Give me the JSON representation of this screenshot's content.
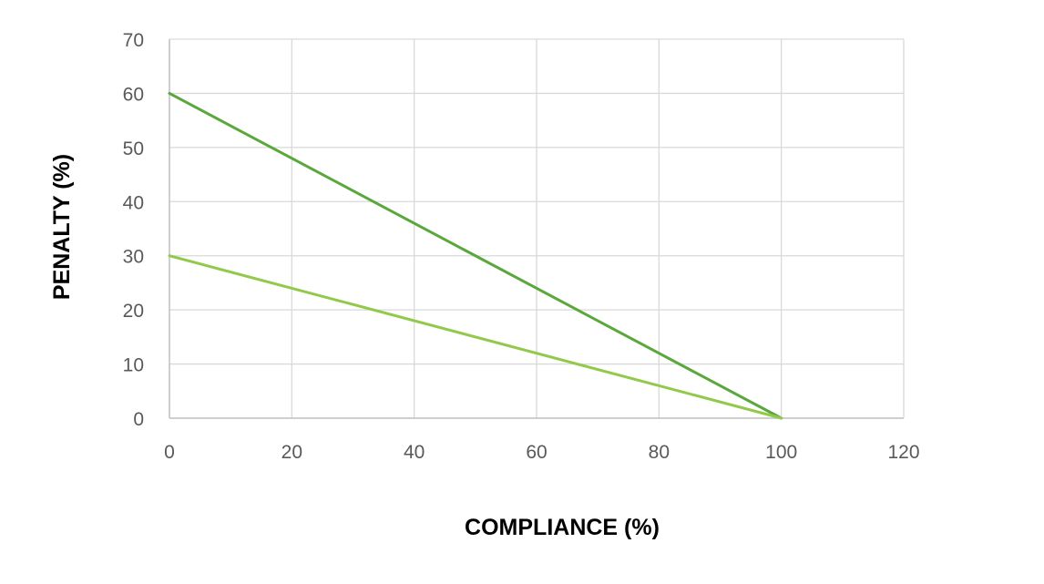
{
  "chart_data": {
    "type": "line",
    "title": "",
    "xlabel": "COMPLIANCE (%)",
    "ylabel": "PENALTY (%)",
    "xlim": [
      0,
      120
    ],
    "ylim": [
      0,
      70
    ],
    "x_ticks": [
      0,
      20,
      40,
      60,
      80,
      100,
      120
    ],
    "y_ticks": [
      0,
      10,
      20,
      30,
      40,
      50,
      60,
      70
    ],
    "grid": true,
    "legend": "none",
    "series": [
      {
        "color": "#5aa83c",
        "points": [
          [
            0,
            60
          ],
          [
            100,
            0
          ]
        ]
      },
      {
        "color": "#92c94a",
        "points": [
          [
            0,
            30
          ],
          [
            100,
            0
          ]
        ]
      }
    ]
  }
}
